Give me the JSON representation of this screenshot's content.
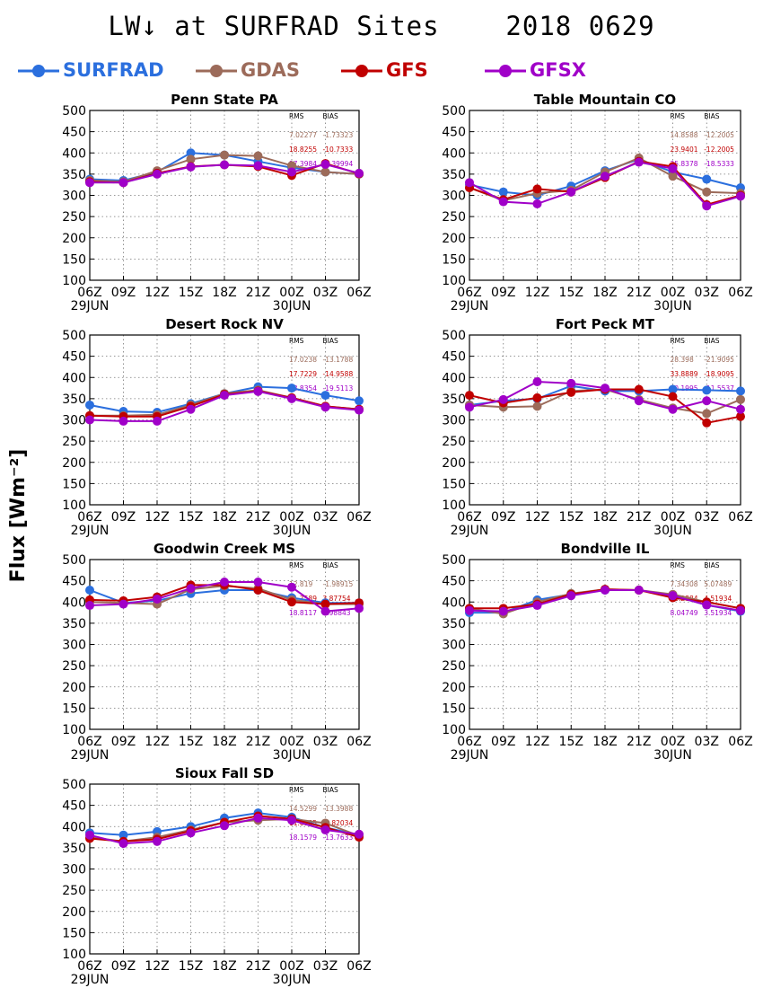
{
  "title": "LW↓ at SURFRAD Sites    2018 0629",
  "y_axis_label": "Flux [Wm⁻²]",
  "legend": [
    {
      "name": "SURFRAD",
      "color": "#2b6fde"
    },
    {
      "name": "GDAS",
      "color": "#9c6b5a"
    },
    {
      "name": "GFS",
      "color": "#c00000"
    },
    {
      "name": "GFSX",
      "color": "#a000c8"
    }
  ],
  "chart_data": [
    {
      "type": "line",
      "title": "Penn State PA",
      "x": [
        "06Z",
        "09Z",
        "12Z",
        "15Z",
        "18Z",
        "21Z",
        "00Z",
        "03Z",
        "06Z"
      ],
      "date_labels": [
        "29JUN",
        "30JUN"
      ],
      "ylim": [
        100,
        500
      ],
      "yticks": [
        100,
        150,
        200,
        250,
        300,
        350,
        400,
        450,
        500
      ],
      "grid": true,
      "stats_header": [
        "RMS",
        "BIAS"
      ],
      "stats": [
        {
          "series": "GDAS",
          "rms": "7.02277",
          "bias": "-1.73323"
        },
        {
          "series": "GFS",
          "rms": "18.8255",
          "bias": "-10.7333"
        },
        {
          "series": "GFSX",
          "rms": "17.3984",
          "bias": "-8.39994"
        }
      ],
      "series": [
        {
          "name": "SURFRAD",
          "values": [
            338,
            335,
            355,
            400,
            395,
            380,
            365,
            355,
            350
          ]
        },
        {
          "name": "GDAS",
          "values": [
            335,
            332,
            358,
            385,
            395,
            393,
            370,
            355,
            350
          ]
        },
        {
          "name": "GFS",
          "values": [
            332,
            330,
            352,
            368,
            372,
            368,
            347,
            375,
            351
          ]
        },
        {
          "name": "GFSX",
          "values": [
            330,
            330,
            350,
            367,
            372,
            370,
            355,
            373,
            352
          ]
        }
      ]
    },
    {
      "type": "line",
      "title": "Table Mountain CO",
      "x": [
        "06Z",
        "09Z",
        "12Z",
        "15Z",
        "18Z",
        "21Z",
        "00Z",
        "03Z",
        "06Z"
      ],
      "date_labels": [
        "29JUN",
        "30JUN"
      ],
      "ylim": [
        100,
        500
      ],
      "yticks": [
        100,
        150,
        200,
        250,
        300,
        350,
        400,
        450,
        500
      ],
      "grid": true,
      "stats_header": [
        "RMS",
        "BIAS"
      ],
      "stats": [
        {
          "series": "GDAS",
          "rms": "14.8588",
          "bias": "-12.2005"
        },
        {
          "series": "GFS",
          "rms": "23.9401",
          "bias": "-12.2005"
        },
        {
          "series": "GFSX",
          "rms": "25.8378",
          "bias": "-18.5333"
        }
      ],
      "series": [
        {
          "name": "SURFRAD",
          "values": [
            325,
            308,
            300,
            322,
            358,
            385,
            355,
            338,
            318
          ]
        },
        {
          "name": "GDAS",
          "values": [
            318,
            288,
            305,
            312,
            355,
            388,
            345,
            308,
            305
          ]
        },
        {
          "name": "GFS",
          "values": [
            318,
            290,
            315,
            308,
            342,
            380,
            368,
            278,
            300
          ]
        },
        {
          "name": "GFSX",
          "values": [
            330,
            285,
            280,
            308,
            345,
            378,
            363,
            275,
            298
          ]
        }
      ]
    },
    {
      "type": "line",
      "title": "Desert Rock NV",
      "x": [
        "06Z",
        "09Z",
        "12Z",
        "15Z",
        "18Z",
        "21Z",
        "00Z",
        "03Z",
        "06Z"
      ],
      "date_labels": [
        "29JUN",
        "30JUN"
      ],
      "ylim": [
        100,
        500
      ],
      "yticks": [
        100,
        150,
        200,
        250,
        300,
        350,
        400,
        450,
        500
      ],
      "grid": true,
      "stats_header": [
        "RMS",
        "BIAS"
      ],
      "stats": [
        {
          "series": "GDAS",
          "rms": "17.0238",
          "bias": "-13.1788"
        },
        {
          "series": "GFS",
          "rms": "17.7229",
          "bias": "-14.9588"
        },
        {
          "series": "GFSX",
          "rms": "18.8354",
          "bias": "-19.5113"
        }
      ],
      "series": [
        {
          "name": "SURFRAD",
          "values": [
            335,
            320,
            318,
            338,
            362,
            378,
            375,
            358,
            345
          ]
        },
        {
          "name": "GDAS",
          "values": [
            310,
            310,
            312,
            335,
            362,
            370,
            352,
            332,
            325
          ]
        },
        {
          "name": "GFS",
          "values": [
            310,
            308,
            308,
            332,
            360,
            368,
            352,
            332,
            325
          ]
        },
        {
          "name": "GFSX",
          "values": [
            300,
            297,
            297,
            325,
            358,
            367,
            350,
            330,
            323
          ]
        }
      ]
    },
    {
      "type": "line",
      "title": "Fort Peck MT",
      "x": [
        "06Z",
        "09Z",
        "12Z",
        "15Z",
        "18Z",
        "21Z",
        "00Z",
        "03Z",
        "06Z"
      ],
      "date_labels": [
        "29JUN",
        "30JUN"
      ],
      "ylim": [
        100,
        500
      ],
      "yticks": [
        100,
        150,
        200,
        250,
        300,
        350,
        400,
        450,
        500
      ],
      "grid": true,
      "stats_header": [
        "RMS",
        "BIAS"
      ],
      "stats": [
        {
          "series": "GDAS",
          "rms": "28.398",
          "bias": "-21.9095"
        },
        {
          "series": "GFS",
          "rms": "33.8889",
          "bias": "-18.9095"
        },
        {
          "series": "GFSX",
          "rms": "30.1995",
          "bias": "-11.5537"
        }
      ],
      "series": [
        {
          "name": "SURFRAD",
          "values": [
            335,
            345,
            350,
            380,
            368,
            368,
            372,
            370,
            368
          ]
        },
        {
          "name": "GDAS",
          "values": [
            335,
            330,
            332,
            368,
            372,
            348,
            328,
            315,
            348
          ]
        },
        {
          "name": "GFS",
          "values": [
            358,
            340,
            352,
            365,
            372,
            372,
            355,
            293,
            308
          ]
        },
        {
          "name": "GFSX",
          "values": [
            330,
            348,
            390,
            386,
            375,
            345,
            325,
            345,
            325
          ]
        }
      ]
    },
    {
      "type": "line",
      "title": "Goodwin Creek MS",
      "x": [
        "06Z",
        "09Z",
        "12Z",
        "15Z",
        "18Z",
        "21Z",
        "00Z",
        "03Z",
        "06Z"
      ],
      "date_labels": [
        "29JUN",
        "30JUN"
      ],
      "ylim": [
        100,
        500
      ],
      "yticks": [
        100,
        150,
        200,
        250,
        300,
        350,
        400,
        450,
        500
      ],
      "grid": true,
      "stats_header": [
        "RMS",
        "BIAS"
      ],
      "stats": [
        {
          "series": "GDAS",
          "rms": "12.819",
          "bias": "-1.98915"
        },
        {
          "series": "GFS",
          "rms": "11.7589",
          "bias": "3.87754"
        },
        {
          "series": "GFSX",
          "rms": "18.8117",
          "bias": "3.98843"
        }
      ],
      "series": [
        {
          "name": "SURFRAD",
          "values": [
            428,
            398,
            403,
            420,
            428,
            428,
            410,
            398,
            398
          ]
        },
        {
          "name": "GDAS",
          "values": [
            400,
            398,
            395,
            430,
            438,
            432,
            405,
            395,
            395
          ]
        },
        {
          "name": "GFS",
          "values": [
            405,
            403,
            412,
            440,
            440,
            428,
            400,
            395,
            398
          ]
        },
        {
          "name": "GFSX",
          "values": [
            392,
            395,
            407,
            432,
            447,
            447,
            435,
            378,
            385
          ]
        }
      ]
    },
    {
      "type": "line",
      "title": "Bondville IL",
      "x": [
        "06Z",
        "09Z",
        "12Z",
        "15Z",
        "18Z",
        "21Z",
        "00Z",
        "03Z",
        "06Z"
      ],
      "date_labels": [
        "29JUN",
        "30JUN"
      ],
      "ylim": [
        100,
        500
      ],
      "yticks": [
        100,
        150,
        200,
        250,
        300,
        350,
        400,
        450,
        500
      ],
      "grid": true,
      "stats_header": [
        "RMS",
        "BIAS"
      ],
      "stats": [
        {
          "series": "GDAS",
          "rms": "7.34308",
          "bias": "5.07489"
        },
        {
          "series": "GFS",
          "rms": "10.2884",
          "bias": "4.51934"
        },
        {
          "series": "GFSX",
          "rms": "8.04749",
          "bias": "3.51934"
        }
      ],
      "series": [
        {
          "name": "SURFRAD",
          "values": [
            375,
            375,
            405,
            418,
            428,
            428,
            415,
            393,
            378
          ]
        },
        {
          "name": "GDAS",
          "values": [
            385,
            372,
            400,
            420,
            430,
            428,
            418,
            400,
            385
          ]
        },
        {
          "name": "GFS",
          "values": [
            385,
            385,
            395,
            418,
            430,
            428,
            410,
            400,
            385
          ]
        },
        {
          "name": "GFSX",
          "values": [
            380,
            378,
            392,
            415,
            428,
            428,
            415,
            393,
            380
          ]
        }
      ]
    },
    {
      "type": "line",
      "title": "Sioux Fall SD",
      "x": [
        "06Z",
        "09Z",
        "12Z",
        "15Z",
        "18Z",
        "21Z",
        "00Z",
        "03Z",
        "06Z"
      ],
      "date_labels": [
        "29JUN",
        "30JUN"
      ],
      "ylim": [
        100,
        500
      ],
      "yticks": [
        100,
        150,
        200,
        250,
        300,
        350,
        400,
        450,
        500
      ],
      "grid": true,
      "stats_header": [
        "RMS",
        "BIAS"
      ],
      "stats": [
        {
          "series": "GDAS",
          "rms": "14.5299",
          "bias": "-13.3988"
        },
        {
          "series": "GFS",
          "rms": "11.0105",
          "bias": "-9.82034"
        },
        {
          "series": "GFSX",
          "rms": "18.1579",
          "bias": "-13.7633"
        }
      ],
      "series": [
        {
          "name": "SURFRAD",
          "values": [
            385,
            380,
            388,
            400,
            420,
            432,
            422,
            398,
            380
          ]
        },
        {
          "name": "GDAS",
          "values": [
            375,
            365,
            375,
            392,
            410,
            415,
            418,
            408,
            378
          ]
        },
        {
          "name": "GFS",
          "values": [
            372,
            365,
            370,
            390,
            410,
            425,
            418,
            398,
            375
          ]
        },
        {
          "name": "GFSX",
          "values": [
            380,
            360,
            365,
            385,
            402,
            420,
            415,
            392,
            382
          ]
        }
      ]
    }
  ]
}
